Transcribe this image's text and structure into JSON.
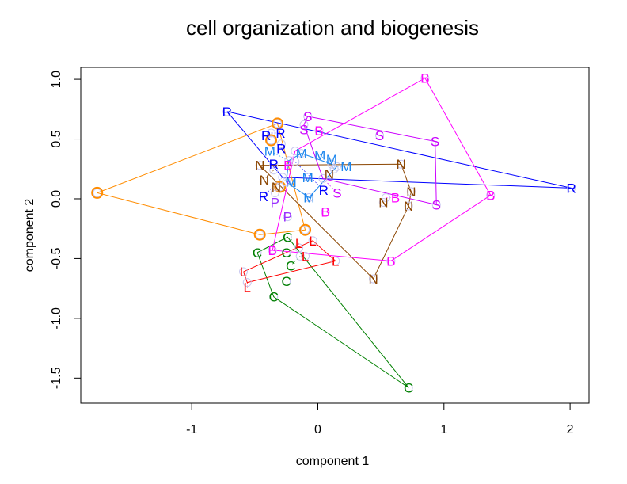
{
  "chart_data": {
    "type": "scatter",
    "title": "cell organization and biogenesis",
    "xlabel": "component 1",
    "ylabel": "component 2",
    "xlim": [
      -1.88,
      2.15
    ],
    "ylim": [
      -1.71,
      1.1
    ],
    "xticks": [
      {
        "value": -1,
        "label": "-1"
      },
      {
        "value": 0,
        "label": "0"
      },
      {
        "value": 1,
        "label": "1"
      },
      {
        "value": 2,
        "label": "2"
      }
    ],
    "yticks": [
      {
        "value": 1.0,
        "label": "1.0"
      },
      {
        "value": 0.5,
        "label": "0.5"
      },
      {
        "value": 0.0,
        "label": "0.0"
      },
      {
        "value": -0.5,
        "label": "-0.5"
      },
      {
        "value": -1.0,
        "label": "-1.0"
      },
      {
        "value": -1.5,
        "label": "-1.5"
      }
    ],
    "grid": false,
    "series": [
      {
        "name": "R",
        "marker": "R",
        "color": "#0000FF",
        "points": [
          [
            -0.72,
            0.73
          ],
          [
            -0.41,
            0.53
          ],
          [
            -0.37,
            0.55
          ],
          [
            -0.29,
            0.46
          ],
          [
            -0.35,
            0.29
          ],
          [
            -0.18,
            0.31
          ],
          [
            -0.28,
            0.18
          ],
          [
            2.01,
            0.09
          ]
        ],
        "hull": [
          [
            -0.72,
            0.73
          ],
          [
            2.01,
            0.09
          ],
          [
            -0.28,
            0.18
          ],
          [
            -0.72,
            0.73
          ]
        ]
      },
      {
        "name": "O",
        "marker": "circle",
        "color": "#FF8C00",
        "points": [
          [
            -1.75,
            0.05
          ],
          [
            -0.32,
            0.63
          ],
          [
            -0.46,
            -0.3
          ],
          [
            -0.1,
            -0.26
          ],
          [
            -0.3,
            0.1
          ],
          [
            -0.37,
            0.49
          ]
        ],
        "hull": [
          [
            -1.75,
            0.05
          ],
          [
            -0.32,
            0.63
          ],
          [
            -0.1,
            -0.26
          ],
          [
            -0.46,
            -0.3
          ],
          [
            -1.75,
            0.05
          ]
        ]
      },
      {
        "name": "C",
        "marker": "C",
        "color": "#008000",
        "points": [
          [
            -0.24,
            -0.32
          ],
          [
            -0.48,
            -0.45
          ],
          [
            -0.25,
            -0.45
          ],
          [
            -0.14,
            -0.48
          ],
          [
            -0.25,
            -0.69
          ],
          [
            -0.35,
            -0.82
          ],
          [
            0.72,
            -1.58
          ]
        ],
        "hull": [
          [
            -0.48,
            -0.45
          ],
          [
            -0.24,
            -0.32
          ],
          [
            0.72,
            -1.58
          ],
          [
            -0.35,
            -0.82
          ],
          [
            -0.48,
            -0.45
          ]
        ]
      },
      {
        "name": "L",
        "marker": "L",
        "color": "#FF0000",
        "points": [
          [
            -0.04,
            -0.35
          ],
          [
            -0.15,
            -0.41
          ],
          [
            -0.1,
            -0.48
          ],
          [
            0.14,
            -0.52
          ],
          [
            -0.59,
            -0.61
          ],
          [
            -0.56,
            -0.7
          ]
        ],
        "hull": [
          [
            -0.59,
            -0.61
          ],
          [
            -0.04,
            -0.35
          ],
          [
            0.14,
            -0.52
          ],
          [
            -0.56,
            -0.7
          ],
          [
            -0.59,
            -0.61
          ]
        ]
      },
      {
        "name": "N",
        "marker": "N",
        "color": "#8B4500",
        "points": [
          [
            -0.46,
            0.28
          ],
          [
            -0.35,
            0.24
          ],
          [
            -0.33,
            0.1
          ],
          [
            0.09,
            0.21
          ],
          [
            0.66,
            0.29
          ],
          [
            0.74,
            0.06
          ],
          [
            0.52,
            -0.03
          ],
          [
            0.72,
            -0.06
          ],
          [
            0.44,
            -0.67
          ]
        ],
        "hull": [
          [
            -0.46,
            0.28
          ],
          [
            0.66,
            0.29
          ],
          [
            0.74,
            0.06
          ],
          [
            0.72,
            -0.06
          ],
          [
            0.44,
            -0.67
          ],
          [
            -0.46,
            0.28
          ]
        ]
      },
      {
        "name": "M",
        "marker": "M",
        "color": "#1C86EE",
        "points": [
          [
            -0.23,
            0.32
          ],
          [
            -0.13,
            0.38
          ],
          [
            -0.25,
            0.14
          ],
          [
            -0.08,
            0.18
          ],
          [
            -0.07,
            0.01
          ],
          [
            0.11,
            0.29
          ],
          [
            0.15,
            0.27
          ],
          [
            0.13,
            0.25
          ]
        ],
        "hull": [
          [
            -0.23,
            0.32
          ],
          [
            -0.13,
            0.38
          ],
          [
            0.11,
            0.29
          ],
          [
            0.15,
            0.27
          ],
          [
            -0.07,
            0.01
          ],
          [
            -0.25,
            0.14
          ],
          [
            -0.23,
            0.32
          ]
        ]
      },
      {
        "name": "S",
        "marker": "S",
        "color": "#CC00FF",
        "points": [
          [
            -0.08,
            0.69
          ],
          [
            -0.11,
            0.62
          ],
          [
            0.49,
            0.53
          ],
          [
            0.93,
            0.48
          ],
          [
            0.94,
            -0.05
          ],
          [
            0.04,
            0.17
          ]
        ],
        "hull": [
          [
            -0.08,
            0.69
          ],
          [
            0.93,
            0.48
          ],
          [
            0.94,
            -0.05
          ],
          [
            0.04,
            0.17
          ],
          [
            -0.11,
            0.62
          ],
          [
            -0.08,
            0.69
          ]
        ]
      },
      {
        "name": "B",
        "marker": "B",
        "color": "#FF00FF",
        "points": [
          [
            0.85,
            1.01
          ],
          [
            0.01,
            0.57
          ],
          [
            -0.18,
            0.4
          ],
          [
            1.37,
            0.03
          ],
          [
            0.54,
            0.01
          ],
          [
            0.06,
            -0.11
          ],
          [
            -0.36,
            -0.43
          ],
          [
            0.58,
            -0.52
          ]
        ],
        "hull": [
          [
            0.85,
            1.01
          ],
          [
            1.37,
            0.03
          ],
          [
            0.58,
            -0.52
          ],
          [
            -0.36,
            -0.43
          ],
          [
            -0.18,
            0.4
          ],
          [
            0.85,
            1.01
          ]
        ]
      },
      {
        "name": "P",
        "marker": "P",
        "color": "#9B30FF",
        "points": [
          [
            -0.34,
            0.05
          ],
          [
            -0.24,
            -0.15
          ]
        ],
        "hull": []
      }
    ]
  }
}
